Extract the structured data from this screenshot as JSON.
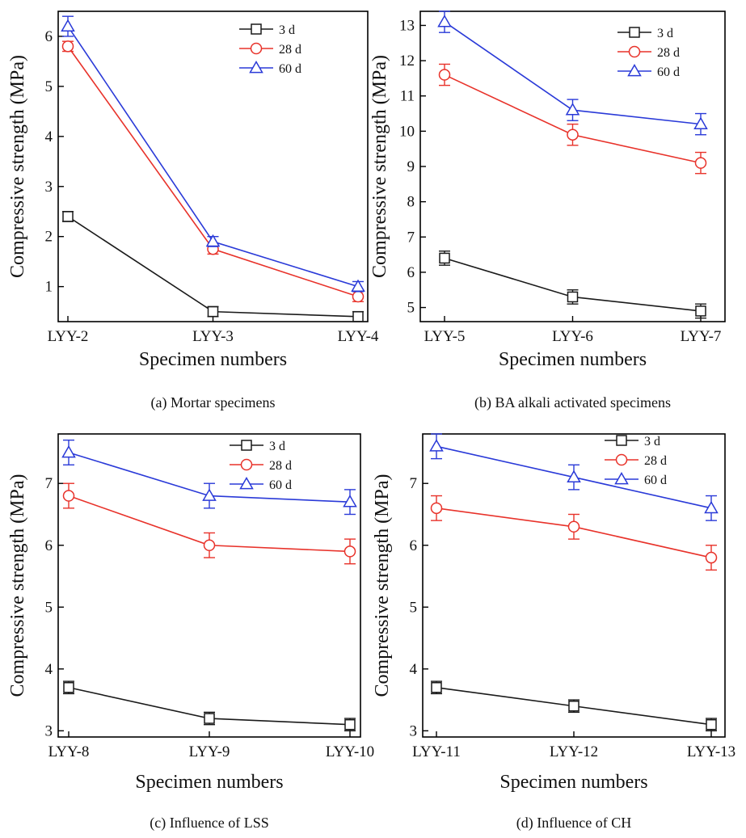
{
  "colors": {
    "3 d": "#1a1a1a",
    "28 d": "#e8322a",
    "60 d": "#2a3ad8"
  },
  "chart_data": [
    {
      "type": "line",
      "caption": "(a) Mortar specimens",
      "xlabel": "Specimen numbers",
      "ylabel": "Compressive strength (MPa)",
      "categories": [
        "LYY-2",
        "LYY-3",
        "LYY-4"
      ],
      "ylim": [
        0.3,
        6.5
      ],
      "yticks": [
        1,
        2,
        3,
        4,
        5,
        6
      ],
      "series": [
        {
          "name": "3 d",
          "marker": "square",
          "values": [
            2.4,
            0.5,
            0.4
          ],
          "errors": [
            0.1,
            0.1,
            0.1
          ]
        },
        {
          "name": "28 d",
          "marker": "circle",
          "values": [
            5.8,
            1.75,
            0.8
          ],
          "errors": [
            0.1,
            0.1,
            0.1
          ]
        },
        {
          "name": "60 d",
          "marker": "triangle",
          "values": [
            6.2,
            1.9,
            1.0
          ],
          "errors": [
            0.2,
            0.1,
            0.1
          ]
        }
      ]
    },
    {
      "type": "line",
      "caption": "(b) BA alkali activated specimens",
      "xlabel": "Specimen numbers",
      "ylabel": "Compressive strength (MPa)",
      "categories": [
        "LYY-5",
        "LYY-6",
        "LYY-7"
      ],
      "ylim": [
        4.6,
        13.4
      ],
      "yticks": [
        5,
        6,
        7,
        8,
        9,
        10,
        11,
        12,
        13
      ],
      "series": [
        {
          "name": "3 d",
          "marker": "square",
          "values": [
            6.4,
            5.3,
            4.9
          ],
          "errors": [
            0.2,
            0.2,
            0.2
          ]
        },
        {
          "name": "28 d",
          "marker": "circle",
          "values": [
            11.6,
            9.9,
            9.1
          ],
          "errors": [
            0.3,
            0.3,
            0.3
          ]
        },
        {
          "name": "60 d",
          "marker": "triangle",
          "values": [
            13.1,
            10.6,
            10.2
          ],
          "errors": [
            0.3,
            0.3,
            0.3
          ]
        }
      ]
    },
    {
      "type": "line",
      "caption": "(c) Influence of LSS",
      "xlabel": "Specimen numbers",
      "ylabel": "Compressive strength (MPa)",
      "categories": [
        "LYY-8",
        "LYY-9",
        "LYY-10"
      ],
      "ylim": [
        2.9,
        7.8
      ],
      "yticks": [
        3,
        4,
        5,
        6,
        7
      ],
      "series": [
        {
          "name": "3 d",
          "marker": "square",
          "values": [
            3.7,
            3.2,
            3.1
          ],
          "errors": [
            0.1,
            0.1,
            0.1
          ]
        },
        {
          "name": "28 d",
          "marker": "circle",
          "values": [
            6.8,
            6.0,
            5.9
          ],
          "errors": [
            0.2,
            0.2,
            0.2
          ]
        },
        {
          "name": "60 d",
          "marker": "triangle",
          "values": [
            7.5,
            6.8,
            6.7
          ],
          "errors": [
            0.2,
            0.2,
            0.2
          ]
        }
      ]
    },
    {
      "type": "line",
      "caption": "(d) Influence of CH",
      "xlabel": "Specimen numbers",
      "ylabel": "Compressive strength (MPa)",
      "categories": [
        "LYY-11",
        "LYY-12",
        "LYY-13"
      ],
      "ylim": [
        2.9,
        7.8
      ],
      "yticks": [
        3,
        4,
        5,
        6,
        7
      ],
      "series": [
        {
          "name": "3 d",
          "marker": "square",
          "values": [
            3.7,
            3.4,
            3.1
          ],
          "errors": [
            0.1,
            0.1,
            0.1
          ]
        },
        {
          "name": "28 d",
          "marker": "circle",
          "values": [
            6.6,
            6.3,
            5.8
          ],
          "errors": [
            0.2,
            0.2,
            0.2
          ]
        },
        {
          "name": "60 d",
          "marker": "triangle",
          "values": [
            7.6,
            7.1,
            6.6
          ],
          "errors": [
            0.2,
            0.2,
            0.2
          ]
        }
      ]
    }
  ]
}
